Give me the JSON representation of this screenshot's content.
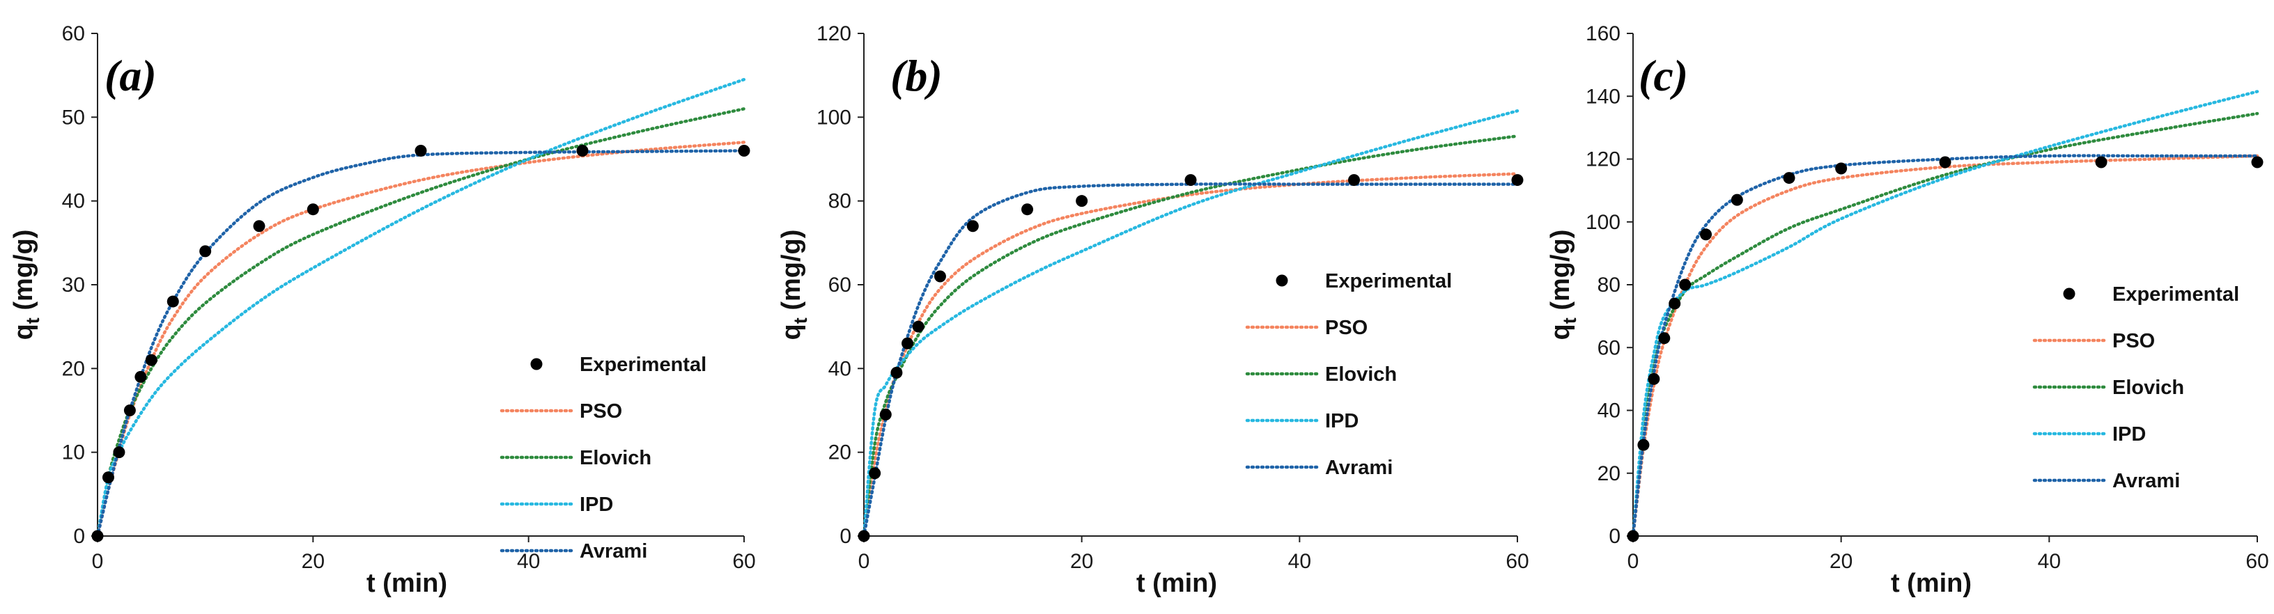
{
  "colors": {
    "PSO": "#f4845f",
    "Elovich": "#2e8b3e",
    "IPD": "#27b8e0",
    "Avrami": "#1f63a8",
    "Experimental": "#000000"
  },
  "chart_data": [
    {
      "type": "scatter",
      "panel_label": "(a)",
      "xlabel": "t (min)",
      "ylabel": "qt (mg/g)",
      "ylabel_main": "q",
      "ylabel_sub": "t",
      "ylabel_unit": " (mg/g)",
      "xlim": [
        0,
        60
      ],
      "ylim": [
        0,
        60
      ],
      "xticks": [
        0,
        20,
        40,
        60
      ],
      "yticks": [
        0,
        10,
        20,
        30,
        40,
        50,
        60
      ],
      "legend_position": "lower-right",
      "legend": [
        "Experimental",
        "PSO",
        "Elovich",
        "IPD",
        "Avrami"
      ],
      "experimental": {
        "x": [
          0,
          1,
          2,
          3,
          4,
          5,
          7,
          10,
          15,
          20,
          30,
          45,
          60
        ],
        "y": [
          0,
          7,
          10,
          15,
          19,
          21,
          28,
          34,
          37,
          39,
          46,
          46,
          46
        ]
      },
      "models": [
        {
          "name": "PSO",
          "x": [
            0,
            1,
            2,
            3,
            5,
            7,
            10,
            15,
            20,
            30,
            40,
            50,
            60
          ],
          "y": [
            0,
            5.5,
            10.2,
            14.5,
            21.0,
            26.0,
            31.0,
            36.0,
            39.0,
            42.5,
            44.6,
            46.0,
            47.0
          ]
        },
        {
          "name": "Elovich",
          "x": [
            0,
            1,
            2,
            3,
            5,
            7,
            10,
            15,
            20,
            30,
            40,
            50,
            60
          ],
          "y": [
            0,
            7.0,
            11.5,
            15.0,
            20.0,
            23.8,
            27.8,
            32.5,
            36.0,
            41.0,
            45.0,
            48.2,
            51.0
          ]
        },
        {
          "name": "IPD",
          "x": [
            0,
            1,
            2,
            3,
            5,
            7,
            10,
            15,
            20,
            30,
            40,
            50,
            60
          ],
          "y": [
            0,
            7.0,
            10.0,
            12.5,
            16.5,
            19.5,
            23.0,
            28.0,
            32.0,
            39.0,
            45.0,
            50.0,
            54.5
          ]
        },
        {
          "name": "Avrami",
          "x": [
            0,
            1,
            2,
            3,
            5,
            7,
            10,
            15,
            20,
            25,
            30,
            40,
            50,
            60
          ],
          "y": [
            0,
            5.5,
            10.5,
            15.0,
            22.5,
            28.0,
            33.8,
            39.8,
            42.8,
            44.5,
            45.5,
            45.8,
            45.9,
            46.0
          ]
        }
      ]
    },
    {
      "type": "scatter",
      "panel_label": "(b)",
      "xlabel": "t (min)",
      "ylabel": "qt (mg/g)",
      "ylabel_main": "q",
      "ylabel_sub": "t",
      "ylabel_unit": " (mg/g)",
      "xlim": [
        0,
        60
      ],
      "ylim": [
        0,
        120
      ],
      "xticks": [
        0,
        20,
        40,
        60
      ],
      "yticks": [
        0,
        20,
        40,
        60,
        80,
        100,
        120
      ],
      "legend_position": "center-right",
      "legend": [
        "Experimental",
        "PSO",
        "Elovich",
        "IPD",
        "Avrami"
      ],
      "experimental": {
        "x": [
          0,
          1,
          2,
          3,
          4,
          5,
          7,
          10,
          15,
          20,
          30,
          45,
          60
        ],
        "y": [
          0,
          15,
          29,
          39,
          46,
          50,
          62,
          74,
          78,
          80,
          85,
          85,
          85
        ]
      },
      "models": [
        {
          "name": "PSO",
          "x": [
            0,
            1,
            2,
            3,
            5,
            7,
            10,
            15,
            20,
            30,
            40,
            50,
            60
          ],
          "y": [
            0,
            18,
            30,
            39,
            51,
            59,
            66,
            73,
            77,
            81.5,
            84,
            85.5,
            86.5
          ]
        },
        {
          "name": "Elovich",
          "x": [
            0,
            1,
            2,
            3,
            5,
            7,
            10,
            15,
            20,
            30,
            40,
            50,
            60
          ],
          "y": [
            0,
            22,
            32,
            38,
            48,
            55,
            62,
            69.5,
            74.5,
            82,
            87.5,
            92,
            95.5
          ]
        },
        {
          "name": "IPD",
          "x": [
            0,
            1,
            2,
            3,
            5,
            7,
            10,
            15,
            20,
            30,
            40,
            50,
            60
          ],
          "y": [
            0,
            30,
            36,
            40,
            46,
            50,
            55,
            62,
            68,
            79,
            87,
            94.5,
            101.5
          ]
        },
        {
          "name": "Avrami",
          "x": [
            0,
            1,
            2,
            3,
            5,
            7,
            10,
            15,
            20,
            30,
            40,
            50,
            60
          ],
          "y": [
            0,
            14,
            28,
            39,
            55,
            65.5,
            76,
            82,
            83.5,
            84,
            84,
            84,
            84
          ]
        }
      ]
    },
    {
      "type": "scatter",
      "panel_label": "(c)",
      "xlabel": "t (min)",
      "ylabel": "qt (mg/g)",
      "ylabel_main": "q",
      "ylabel_sub": "t",
      "ylabel_unit": " (mg/g)",
      "xlim": [
        0,
        60
      ],
      "ylim": [
        0,
        160
      ],
      "xticks": [
        0,
        20,
        40,
        60
      ],
      "yticks": [
        0,
        20,
        40,
        60,
        80,
        100,
        120,
        140,
        160
      ],
      "legend_position": "center-right",
      "legend": [
        "Experimental",
        "PSO",
        "Elovich",
        "IPD",
        "Avrami"
      ],
      "experimental": {
        "x": [
          0,
          1,
          2,
          3,
          4,
          5,
          7,
          10,
          15,
          20,
          30,
          45,
          60
        ],
        "y": [
          0,
          29,
          50,
          63,
          74,
          80,
          96,
          107,
          114,
          117,
          119,
          119,
          119
        ]
      },
      "models": [
        {
          "name": "PSO",
          "x": [
            0,
            1,
            2,
            3,
            5,
            7,
            10,
            15,
            20,
            30,
            40,
            50,
            60
          ],
          "y": [
            0,
            28,
            48,
            62,
            80,
            92,
            102,
            110,
            114,
            117.5,
            119,
            120,
            121
          ]
        },
        {
          "name": "Elovich",
          "x": [
            0,
            1,
            2,
            3,
            5,
            7,
            10,
            15,
            20,
            30,
            40,
            50,
            60
          ],
          "y": [
            0,
            35,
            55,
            66,
            78,
            83,
            89,
            98,
            104,
            115,
            123,
            129,
            134.5
          ]
        },
        {
          "name": "IPD",
          "x": [
            0,
            1,
            2,
            3,
            5,
            7,
            10,
            15,
            20,
            30,
            40,
            50,
            60
          ],
          "y": [
            0,
            38,
            58,
            70,
            78,
            80,
            84,
            92,
            101,
            114,
            124,
            133,
            141.5
          ]
        },
        {
          "name": "Avrami",
          "x": [
            0,
            1,
            2,
            3,
            5,
            7,
            10,
            15,
            20,
            30,
            40,
            50,
            60
          ],
          "y": [
            0,
            30,
            52,
            67,
            87,
            99,
            108,
            115,
            118,
            120,
            121,
            121,
            121
          ]
        }
      ]
    }
  ]
}
